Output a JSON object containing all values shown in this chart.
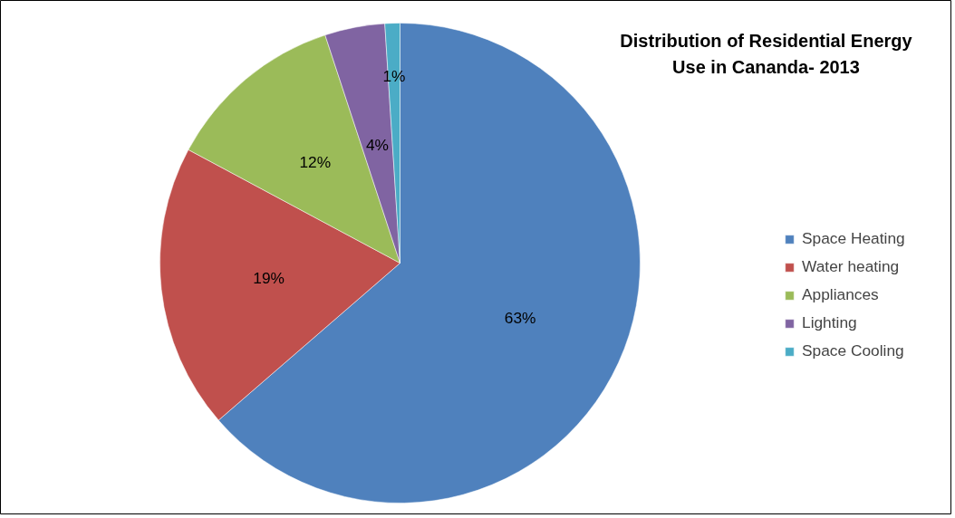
{
  "chart_data": {
    "type": "pie",
    "title": "Distribution of Residential Energy Use in Cananda- 2013",
    "categories": [
      "Space Heating",
      "Water heating",
      "Appliances",
      "Lighting",
      "Space Cooling"
    ],
    "values": [
      63,
      19,
      12,
      4,
      1
    ],
    "colors": [
      "#4f81bd",
      "#c0504d",
      "#9bbb59",
      "#8064a2",
      "#4bacc6"
    ],
    "value_labels": [
      "63%",
      "19%",
      "12%",
      "4%",
      "1%"
    ],
    "legend": "right"
  }
}
